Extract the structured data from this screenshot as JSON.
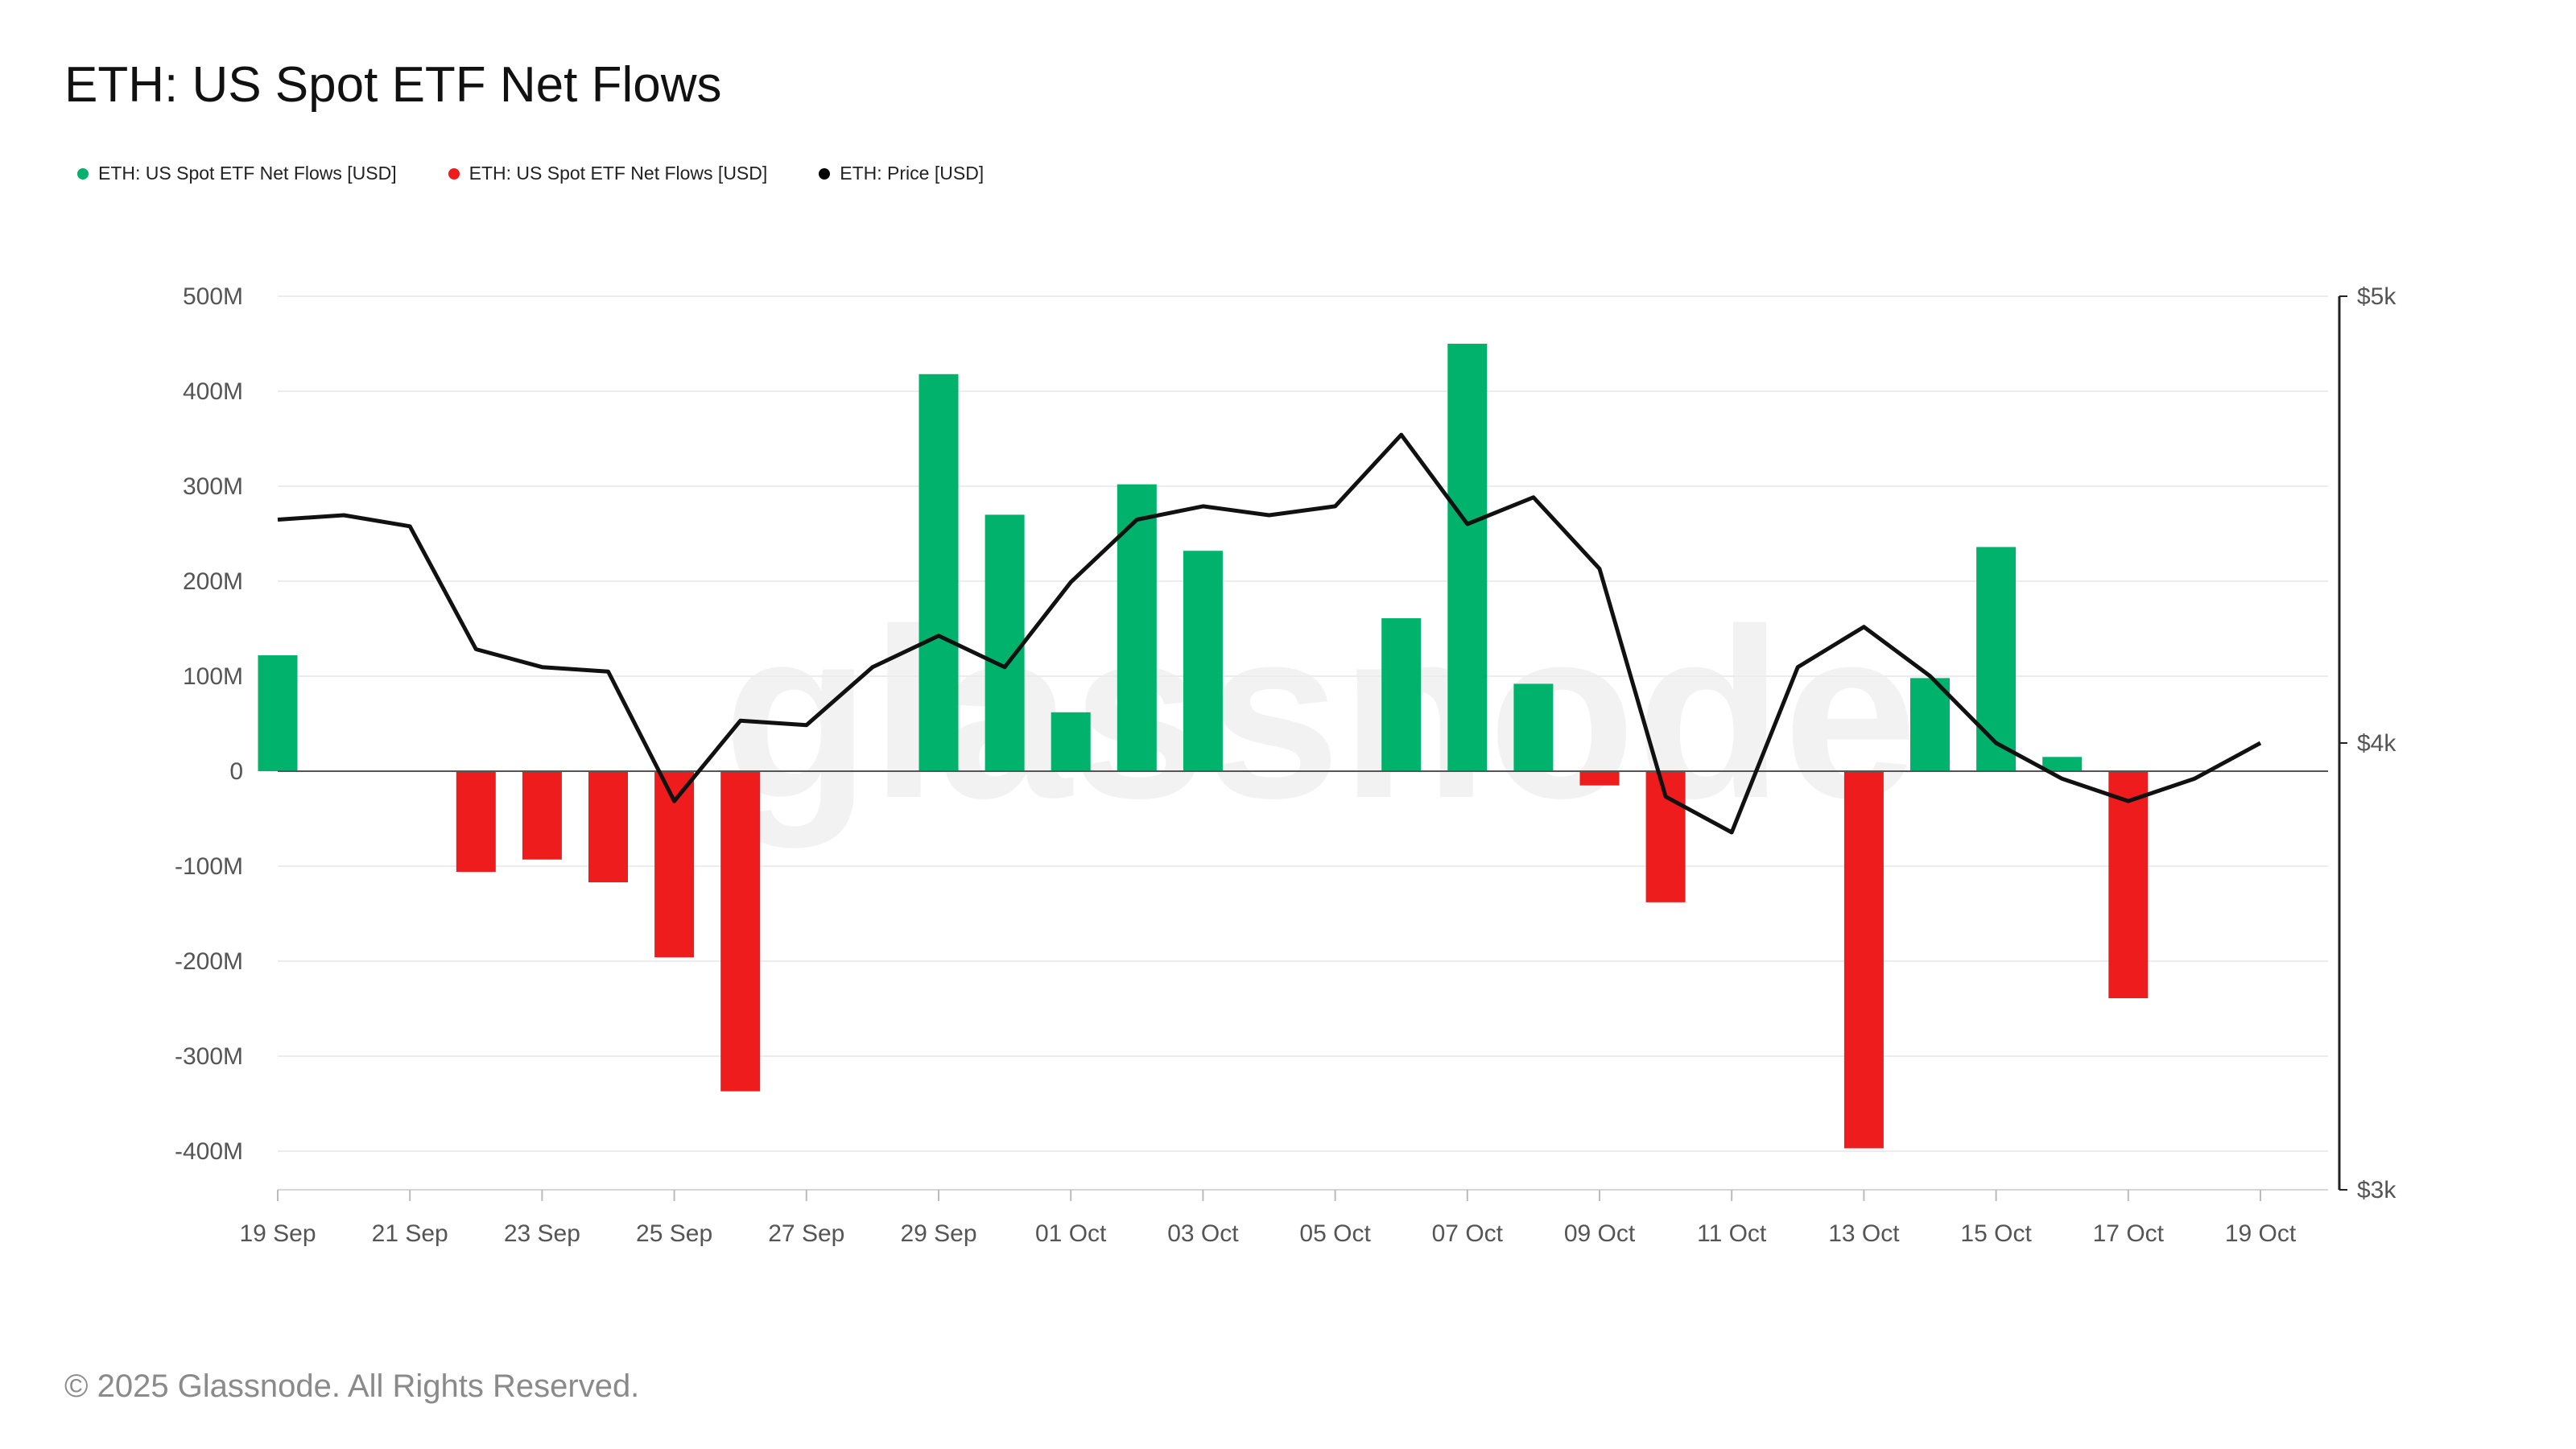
{
  "title": "ETH: US Spot ETF Net Flows",
  "footer": "© 2025 Glassnode. All Rights Reserved.",
  "watermark": "glassnode",
  "legend": [
    {
      "label": "ETH: US Spot ETF Net Flows [USD]",
      "color": "#00b26b"
    },
    {
      "label": "ETH: US Spot ETF Net Flows [USD]",
      "color": "#ee1c1c"
    },
    {
      "label": "ETH: Price [USD]",
      "color": "#000000"
    }
  ],
  "chart_data": {
    "type": "bar",
    "title": "ETH: US Spot ETF Net Flows",
    "colors": {
      "positive": "#00b26b",
      "negative": "#ee1c1c",
      "price": "#111111"
    },
    "dates": [
      "19 Sep",
      "20 Sep",
      "21 Sep",
      "22 Sep",
      "23 Sep",
      "24 Sep",
      "25 Sep",
      "26 Sep",
      "27 Sep",
      "28 Sep",
      "29 Sep",
      "30 Sep",
      "01 Oct",
      "02 Oct",
      "03 Oct",
      "04 Oct",
      "05 Oct",
      "06 Oct",
      "07 Oct",
      "08 Oct",
      "09 Oct",
      "10 Oct",
      "11 Oct",
      "12 Oct",
      "13 Oct",
      "14 Oct",
      "15 Oct",
      "16 Oct",
      "17 Oct",
      "18 Oct",
      "19 Oct"
    ],
    "x_tick_labels": [
      "19 Sep",
      "21 Sep",
      "23 Sep",
      "25 Sep",
      "27 Sep",
      "29 Sep",
      "01 Oct",
      "03 Oct",
      "05 Oct",
      "07 Oct",
      "09 Oct",
      "11 Oct",
      "13 Oct",
      "15 Oct",
      "17 Oct",
      "19 Oct"
    ],
    "series": [
      {
        "name": "ETH: US Spot ETF Net Flows [USD]",
        "unit": "M USD",
        "values": [
          122,
          0,
          0,
          -106,
          -93,
          -117,
          -196,
          -337,
          0,
          0,
          418,
          270,
          62,
          302,
          232,
          0,
          0,
          161,
          450,
          92,
          -15,
          -138,
          0,
          0,
          -397,
          98,
          236,
          15,
          -239,
          0,
          0
        ]
      },
      {
        "name": "ETH: Price [USD]",
        "axis": "right",
        "values": [
          4500,
          4510,
          4485,
          4210,
          4170,
          4160,
          3870,
          4050,
          4040,
          4170,
          4240,
          4170,
          4360,
          4500,
          4530,
          4510,
          4530,
          4690,
          4490,
          4550,
          4390,
          3880,
          3800,
          4170,
          4260,
          4150,
          4000,
          3920,
          3870,
          3920,
          4000
        ]
      }
    ],
    "y_left": {
      "ticks": [
        500,
        400,
        300,
        200,
        100,
        0,
        -100,
        -200,
        -300,
        -400
      ],
      "tick_labels": [
        "500M",
        "400M",
        "300M",
        "200M",
        "100M",
        "0",
        "-100M",
        "-200M",
        "-300M",
        "-400M"
      ],
      "ylim": [
        -440,
        500
      ]
    },
    "y_right": {
      "ticks": [
        5000,
        4000,
        3000
      ],
      "tick_labels": [
        "$5k",
        "$4k",
        "$3k"
      ],
      "ylim": [
        3000,
        5000
      ]
    },
    "grid": true,
    "legend_position": "top-left"
  }
}
